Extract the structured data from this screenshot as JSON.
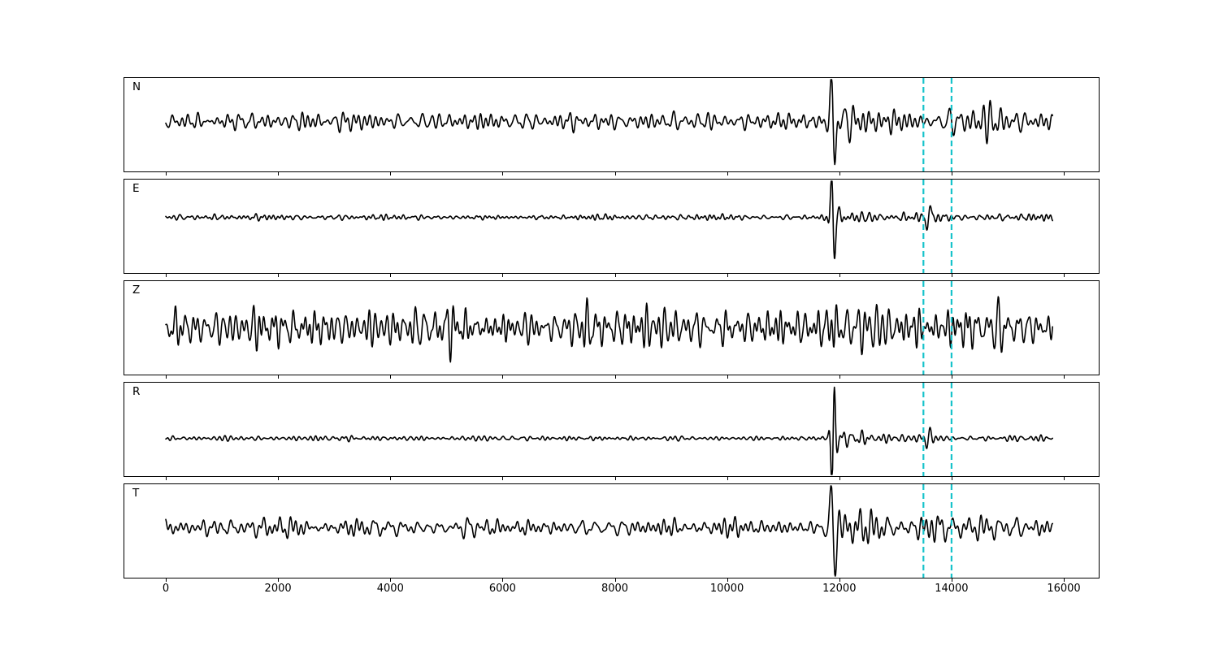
{
  "figure": {
    "background": "#ffffff",
    "trace_color": "#000000",
    "axis_color": "#000000"
  },
  "chart_data": {
    "type": "line",
    "title": "",
    "xlabel": "",
    "ylabel": "",
    "grid": false,
    "legend": null,
    "axis_xlim": [
      -750,
      16640
    ],
    "x_ticks": [
      0,
      2000,
      4000,
      6000,
      8000,
      10000,
      12000,
      14000,
      16000
    ],
    "x_tick_labels": [
      "0",
      "2000",
      "4000",
      "6000",
      "8000",
      "10000",
      "12000",
      "14000",
      "16000"
    ],
    "data_x_range": [
      0,
      15800
    ],
    "event_onset_x": 11890,
    "pick_lines": {
      "x_values": [
        13500,
        14000
      ],
      "color": "#17c3cb",
      "dash": [
        7,
        4
      ],
      "line_width": 2.2
    },
    "panels": [
      {
        "label": "N",
        "seed": 101,
        "base_amp": 12,
        "period_band": [
          85,
          330
        ],
        "baseline_offset": -4,
        "coda_gain": 0.75,
        "coda_tau": 2800,
        "event_pulse": {
          "x": 11890,
          "amp": -75,
          "width": 70,
          "period": 150
        },
        "late_burst": {
          "x": 14620,
          "gain": 1.0,
          "sigma": 280
        },
        "pick_wavelet": null
      },
      {
        "label": "E",
        "seed": 202,
        "base_amp": 3.6,
        "period_band": [
          65,
          240
        ],
        "baseline_offset": -11,
        "coda_gain": 2.2,
        "coda_tau": 1600,
        "event_pulse": {
          "x": 11890,
          "amp": -70,
          "width": 60,
          "period": 130
        },
        "late_burst": null,
        "pick_wavelet": {
          "x": 13590,
          "amp": 16,
          "width": 95,
          "period": 170
        }
      },
      {
        "label": "Z",
        "seed": 303,
        "base_amp": 26,
        "period_band": [
          55,
          195
        ],
        "baseline_offset": 0,
        "coda_gain": 0.15,
        "coda_tau": 3000,
        "event_pulse": {
          "x": 11890,
          "amp": -18,
          "width": 70,
          "period": 120
        },
        "late_burst": null,
        "pick_wavelet": null
      },
      {
        "label": "R",
        "seed": 404,
        "base_amp": 3.2,
        "period_band": [
          65,
          240
        ],
        "baseline_offset": 11,
        "coda_gain": 2.4,
        "coda_tau": 1300,
        "event_pulse": {
          "x": 11890,
          "amp": 75,
          "width": 55,
          "period": 110
        },
        "late_burst": null,
        "pick_wavelet": {
          "x": 13590,
          "amp": 12,
          "width": 85,
          "period": 150
        }
      },
      {
        "label": "T",
        "seed": 505,
        "base_amp": 12,
        "period_band": [
          85,
          330
        ],
        "baseline_offset": -4,
        "coda_gain": 0.85,
        "coda_tau": 2800,
        "event_pulse": {
          "x": 11890,
          "amp": -70,
          "width": 80,
          "period": 160
        },
        "late_burst": {
          "x": 14600,
          "gain": 1.1,
          "sigma": 300
        },
        "pick_wavelet": null
      }
    ]
  }
}
